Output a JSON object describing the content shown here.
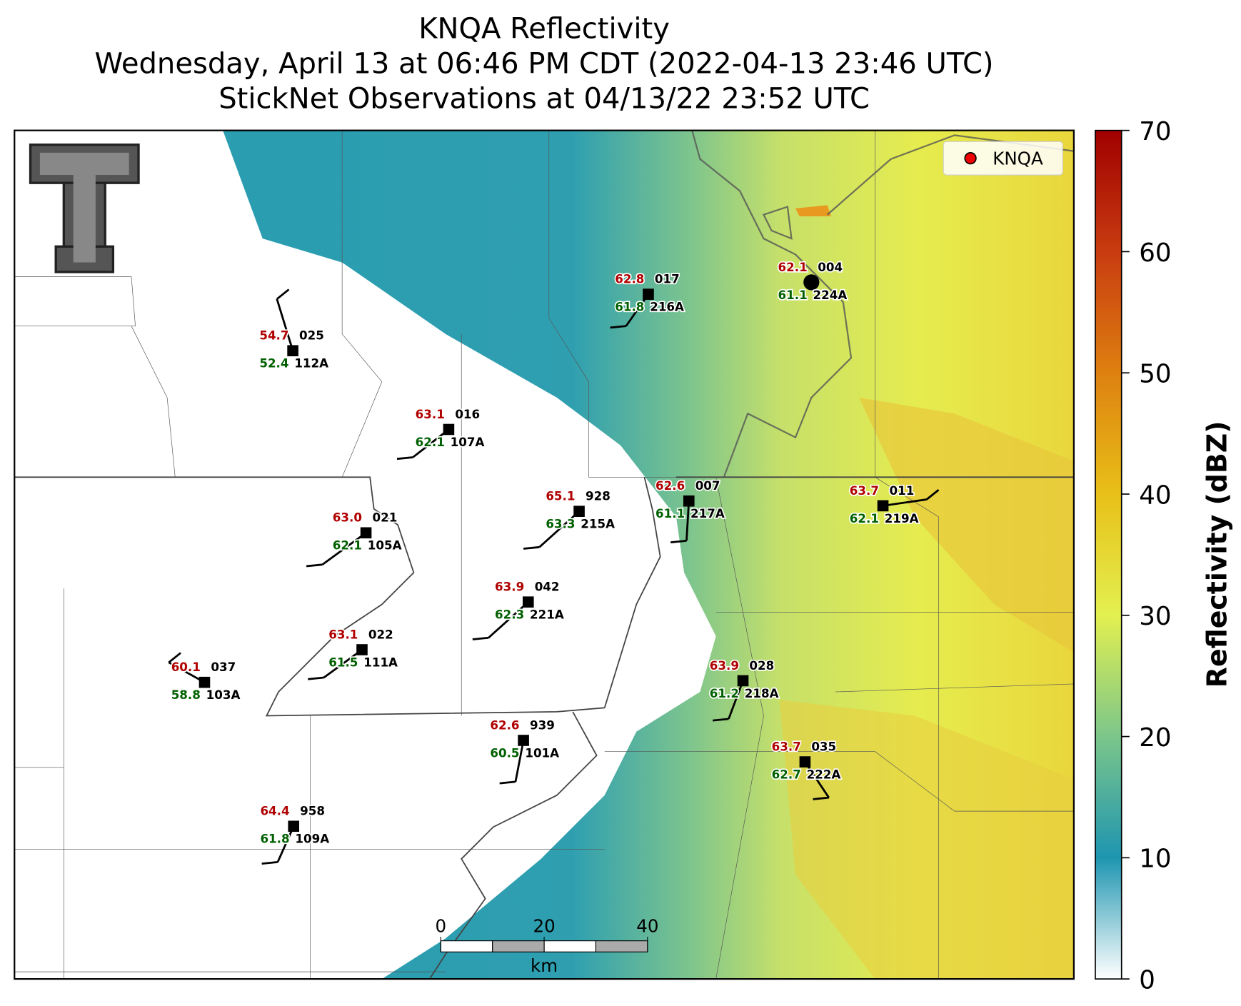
{
  "title": [
    "KNQA Reflectivity",
    "Wednesday, April 13 at 06:46 PM CDT (2022-04-13 23:46 UTC)",
    "StickNet Observations at 04/13/22 23:52 UTC"
  ],
  "legend": "KNQA",
  "colorbar": {
    "label": "Reflectivity (dBZ)",
    "range": [
      0,
      70
    ],
    "ticks": [
      0,
      10,
      20,
      30,
      40,
      50,
      60,
      70
    ]
  },
  "scale_bar": {
    "ticks": [
      0,
      20,
      40
    ],
    "range": [
      0,
      40
    ],
    "unit": "km"
  },
  "stations": [
    {
      "temp": "54.7",
      "dew": "52.4",
      "id": "025",
      "probe": "112A"
    },
    {
      "temp": "63.1",
      "dew": "62.1",
      "id": "016",
      "probe": "107A"
    },
    {
      "temp": "62.8",
      "dew": "61.8",
      "id": "017",
      "probe": "216A"
    },
    {
      "temp": "62.1",
      "dew": "61.1",
      "id": "004",
      "probe": "224A"
    },
    {
      "temp": "63.0",
      "dew": "62.1",
      "id": "021",
      "probe": "105A"
    },
    {
      "temp": "65.1",
      "dew": "63.3",
      "id": "928",
      "probe": "215A"
    },
    {
      "temp": "62.6",
      "dew": "61.1",
      "id": "007",
      "probe": "217A"
    },
    {
      "temp": "63.7",
      "dew": "62.1",
      "id": "011",
      "probe": "219A"
    },
    {
      "temp": "63.9",
      "dew": "62.3",
      "id": "042",
      "probe": "221A"
    },
    {
      "temp": "63.1",
      "dew": "61.5",
      "id": "022",
      "probe": "111A"
    },
    {
      "temp": "60.1",
      "dew": "58.8",
      "id": "037",
      "probe": "103A"
    },
    {
      "temp": "63.9",
      "dew": "61.2",
      "id": "028",
      "probe": "218A"
    },
    {
      "temp": "62.6",
      "dew": "60.5",
      "id": "939",
      "probe": "101A"
    },
    {
      "temp": "63.7",
      "dew": "62.7",
      "id": "035",
      "probe": "222A"
    },
    {
      "temp": "64.4",
      "dew": "61.8",
      "id": "958",
      "probe": "109A"
    }
  ]
}
